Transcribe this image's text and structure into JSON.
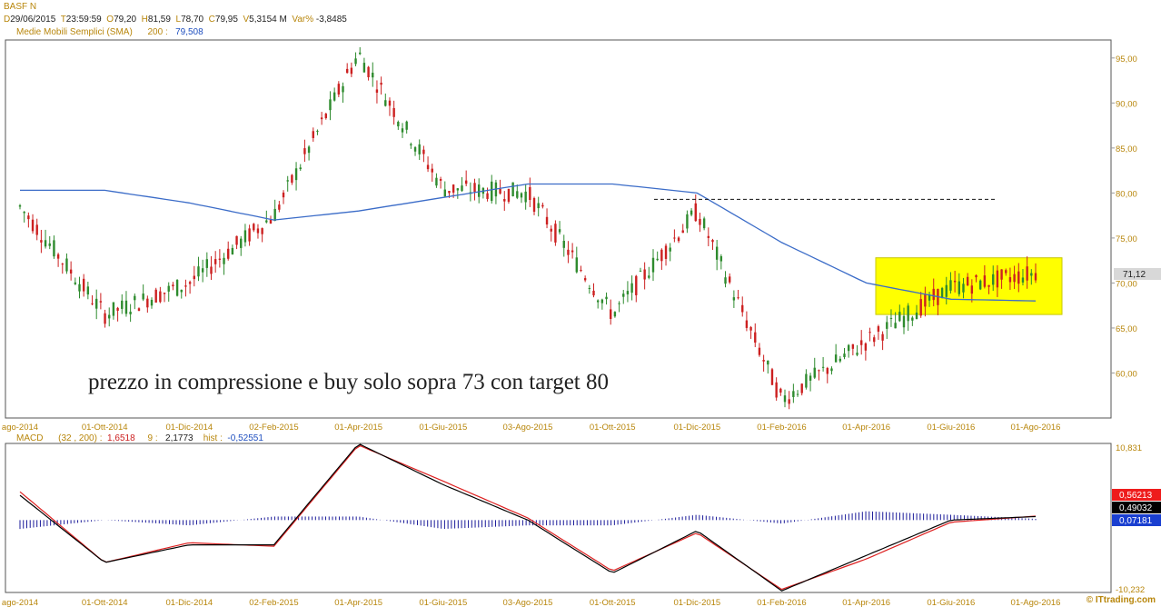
{
  "header": {
    "symbol": "BASF N",
    "d_label": "D",
    "date": "29/06/2015",
    "t_label": "T",
    "time": "23:59:59",
    "o_label": "O",
    "open": "79,20",
    "h_label": "H",
    "high": "81,59",
    "l_label": "L",
    "low": "78,70",
    "c_label": "C",
    "close": "79,95",
    "v_label": "V",
    "volume": "5,3154 M",
    "var_label": "Var%",
    "var": "-3,8485",
    "sma_label": "Medie Mobili Semplici (SMA)",
    "sma_period": "200 :",
    "sma_value": "79,508"
  },
  "macd_header": {
    "label": "MACD",
    "params": "(32 , 200) :",
    "macd_value": "1,6518",
    "signal_period": "9 :",
    "signal_value": "2,1773",
    "hist_label": "hist :",
    "hist_value": "-0,52551"
  },
  "annotation": "prezzo in compressione e buy solo sopra 73 con target 80",
  "last_price_tag": "71,12",
  "credit": "© ITtrading.com",
  "colors": {
    "price_box_fill": "#ffff00",
    "sma_line": "#3b6cc8",
    "candle": "#2e8b2e",
    "candle_down": "#cc2020",
    "macd_line": "#000000",
    "signal_line": "#dd2020",
    "histogram": "#1a1a99",
    "axis_text": "#b8860b",
    "tag_red": "#ee1c1c",
    "tag_black": "#000000",
    "tag_blue": "#1a3fd0"
  },
  "chart_data": [
    {
      "type": "candlestick",
      "title": "BASF N",
      "ylim": [
        55,
        97
      ],
      "y_ticks": [
        "95,00",
        "90,00",
        "85,00",
        "80,00",
        "75,00",
        "70,00",
        "65,00",
        "60,00"
      ],
      "x_ticks": [
        "ago-2014",
        "01-Ott-2014",
        "01-Dic-2014",
        "02-Feb-2015",
        "01-Apr-2015",
        "01-Giu-2015",
        "03-Ago-2015",
        "01-Ott-2015",
        "01-Dic-2015",
        "01-Feb-2016",
        "01-Apr-2016",
        "01-Giu-2016",
        "01-Ago-2016"
      ],
      "price_series": {
        "name": "BASF N",
        "x": [
          "ago-2014",
          "01-Ott-2014",
          "01-Dic-2014",
          "02-Feb-2015",
          "01-Apr-2015",
          "01-Giu-2015",
          "03-Ago-2015",
          "01-Ott-2015",
          "01-Dic-2015",
          "01-Feb-2016",
          "01-Apr-2016",
          "01-Giu-2016",
          "01-Ago-2016"
        ],
        "close": [
          78.5,
          66.5,
          70.0,
          77.5,
          95.5,
          80.5,
          80.0,
          66.5,
          78.0,
          57.0,
          63.5,
          69.5,
          71.1
        ]
      },
      "sma_series": {
        "name": "Medie Mobili Semplici (SMA) 200",
        "x": [
          "ago-2014",
          "01-Ott-2014",
          "01-Dic-2014",
          "02-Feb-2015",
          "01-Apr-2015",
          "01-Giu-2015",
          "03-Ago-2015",
          "01-Ott-2015",
          "01-Dic-2015",
          "01-Feb-2016",
          "01-Apr-2016",
          "01-Giu-2016",
          "01-Ago-2016"
        ],
        "values": [
          80.3,
          80.3,
          78.9,
          77.0,
          78.0,
          79.5,
          81.0,
          81.0,
          80.0,
          74.5,
          70.0,
          68.2,
          68.0
        ]
      },
      "resistance_level": 79.3,
      "consolidation_range": [
        66.5,
        72.8
      ],
      "last_price": 71.12
    },
    {
      "type": "line",
      "title": "MACD",
      "ylim": [
        -10.232,
        10.831
      ],
      "y_ticks": [
        "10,831",
        "-10,232"
      ],
      "x_ticks": [
        "ago-2014",
        "01-Ott-2014",
        "01-Dic-2014",
        "02-Feb-2015",
        "01-Apr-2015",
        "01-Giu-2015",
        "03-Ago-2015",
        "01-Ott-2015",
        "01-Dic-2015",
        "01-Feb-2016",
        "01-Apr-2016",
        "01-Giu-2016",
        "01-Ago-2016"
      ],
      "series": [
        {
          "name": "MACD",
          "values": [
            3.5,
            -6.0,
            -3.5,
            -3.5,
            10.8,
            5.0,
            0.0,
            -7.5,
            -1.5,
            -10.0,
            -5.0,
            0.0,
            0.49
          ]
        },
        {
          "name": "9",
          "values": [
            4.0,
            -6.0,
            -3.2,
            -3.7,
            10.6,
            5.5,
            0.3,
            -7.2,
            -1.8,
            -9.8,
            -5.5,
            -0.3,
            0.56
          ]
        },
        {
          "name": "hist",
          "values": [
            -0.5,
            0.0,
            -0.3,
            0.2,
            0.2,
            -0.5,
            -0.3,
            -0.3,
            0.3,
            -0.2,
            0.5,
            0.3,
            0.07
          ]
        }
      ],
      "value_tags": [
        "0,56213",
        "0,49032",
        "0,07181"
      ]
    }
  ]
}
